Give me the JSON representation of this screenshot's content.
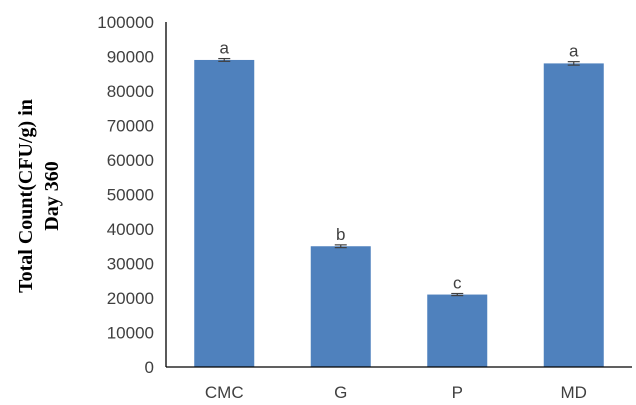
{
  "chart_data": {
    "type": "bar",
    "categories": [
      "CMC",
      "G",
      "P",
      "MD"
    ],
    "values": [
      89000,
      35000,
      21000,
      88000
    ],
    "error_bars": [
      400,
      400,
      300,
      500
    ],
    "significance_letters": [
      "a",
      "b",
      "c",
      "a"
    ],
    "ylabel_lines": [
      "Total Count(CFU/g) in",
      "Day 360"
    ],
    "xlabel": "",
    "title": "",
    "ylim": [
      0,
      100000
    ],
    "yticks": [
      0,
      10000,
      20000,
      30000,
      40000,
      50000,
      60000,
      70000,
      80000,
      90000,
      100000
    ],
    "grid": false,
    "legend": "none",
    "bar_color": "#4F81BD",
    "error_bar_color": "#404040"
  }
}
